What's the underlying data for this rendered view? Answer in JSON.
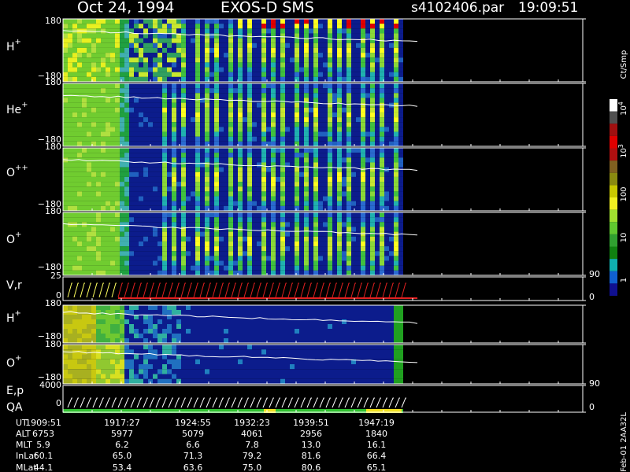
{
  "header": {
    "date": "Oct 24, 1994",
    "instrument": "EXOS-D SMS",
    "file": "s4102406.par",
    "time": "19:09:51"
  },
  "panels": [
    {
      "species": "H",
      "charge": "+",
      "max": "180",
      "min": "−180"
    },
    {
      "species": "He",
      "charge": "+",
      "max": "180",
      "min": "−180"
    },
    {
      "species": "O",
      "charge": "++",
      "max": "180",
      "min": "−180"
    },
    {
      "species": "O",
      "charge": "+",
      "max": "180",
      "min": "−180"
    },
    {
      "species": "V,r",
      "max": "25",
      "min": "0",
      "right_max": "90",
      "right_min": "0"
    },
    {
      "species": "H",
      "charge": "+",
      "max": "180",
      "min": "−180"
    },
    {
      "species": "O",
      "charge": "+",
      "max": "180",
      "min": "−180"
    },
    {
      "species": "E,p",
      "max": "4000",
      "right_max": "90"
    },
    {
      "species": "QA",
      "min": "0",
      "right_min": "0"
    }
  ],
  "colorbar": {
    "title": "Ct/Smp",
    "labels": [
      {
        "base": "10",
        "exp": "4"
      },
      {
        "base": "10",
        "exp": "3"
      },
      "100",
      "10",
      "1"
    ]
  },
  "footer": {
    "rows": [
      {
        "name": "UT",
        "values": [
          "1909:51",
          "1917:27",
          "1924:55",
          "1932:23",
          "1939:51",
          "1947:19"
        ]
      },
      {
        "name": "ALT",
        "values": [
          "6753",
          "5977",
          "5079",
          "4061",
          "2956",
          "1840"
        ]
      },
      {
        "name": "MLT",
        "values": [
          "5.9",
          "6.2",
          "6.6",
          "7.8",
          "13.0",
          "16.1"
        ]
      },
      {
        "name": "InLat",
        "values": [
          "60.1",
          "65.0",
          "71.3",
          "79.2",
          "81.6",
          "66.4"
        ]
      },
      {
        "name": "MLat",
        "values": [
          "44.1",
          "53.4",
          "63.6",
          "75.0",
          "80.6",
          "65.1"
        ]
      }
    ]
  },
  "stamp": "Feb-01 2AA32L"
}
